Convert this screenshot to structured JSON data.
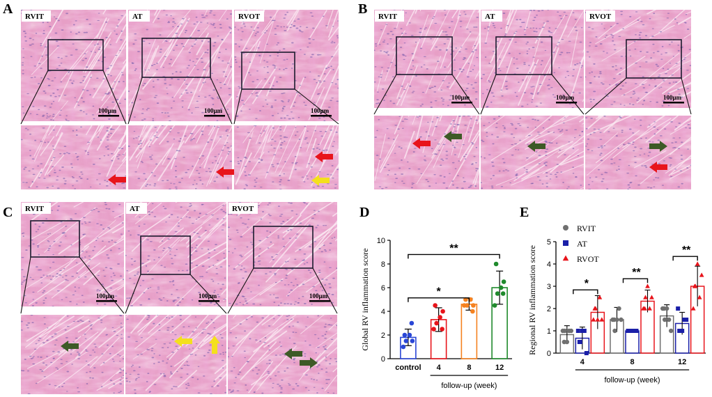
{
  "panel_letters": [
    "A",
    "B",
    "C",
    "D",
    "E"
  ],
  "histology": {
    "region_labels": [
      "RVIT",
      "AT",
      "RVOT"
    ],
    "scale_bar_label": "100μm",
    "tissue_colors": {
      "base": "#e79fc6",
      "light": "#f3c6dc",
      "fiber": "#d880b2",
      "nucleus": "#6b56a8",
      "gap": "#fbe9f2"
    },
    "arrow_colors": {
      "red": "#e8141b",
      "green": "#3d5a27",
      "yellow": "#f4e01c"
    }
  },
  "chart_data": [
    {
      "type": "bar",
      "panel": "D",
      "title": "",
      "ylabel": "Global RV inflammation score",
      "xlabel": "follow-up (week)",
      "categories": [
        "control",
        "4",
        "8",
        "12"
      ],
      "ylim": [
        0,
        10
      ],
      "yticks": [
        0,
        2,
        4,
        6,
        8,
        10
      ],
      "colors": [
        "#2a47d6",
        "#e8141b",
        "#f58220",
        "#1f8a2c"
      ],
      "values": [
        1.8,
        3.3,
        4.6,
        6.0
      ],
      "errors": [
        0.7,
        1.0,
        0.5,
        1.4
      ],
      "points": [
        [
          1.0,
          1.5,
          2.0,
          1.5,
          2.0,
          3.0
        ],
        [
          2.5,
          3.0,
          3.5,
          4.0,
          4.5,
          2.5
        ],
        [
          4.5,
          4.5,
          5.0,
          4.5,
          5.0,
          4.0
        ],
        [
          4.5,
          5.5,
          6.0,
          6.5,
          8.0,
          5.5
        ]
      ],
      "significance": [
        {
          "from": "control",
          "to": "8",
          "label": "*"
        },
        {
          "from": "control",
          "to": "12",
          "label": "**"
        }
      ],
      "grid": false
    },
    {
      "type": "bar",
      "panel": "E",
      "title": "",
      "ylabel": "Regional RV inflammation score",
      "xlabel": "follow-up (week)",
      "categories": [
        "4",
        "8",
        "12"
      ],
      "ylim": [
        0,
        5
      ],
      "yticks": [
        0,
        1,
        2,
        3,
        4,
        5
      ],
      "series": [
        {
          "name": "RVIT",
          "color": "#707070",
          "values": [
            0.83,
            1.5,
            1.67
          ],
          "errors": [
            0.4,
            0.55,
            0.5
          ],
          "points": [
            [
              1,
              1,
              0.5,
              1,
              1,
              0.5
            ],
            [
              1.5,
              1,
              1.5,
              2,
              1.5,
              1.5
            ],
            [
              2,
              1.5,
              2,
              1.5,
              1,
              2
            ]
          ]
        },
        {
          "name": "AT",
          "color": "#1a1fa8",
          "values": [
            0.67,
            1.0,
            1.33
          ],
          "errors": [
            0.5,
            0.05,
            0.5
          ],
          "points": [
            [
              1,
              0.5,
              1,
              1,
              0,
              0.5
            ],
            [
              1,
              1,
              1,
              1,
              1,
              1
            ],
            [
              2,
              1,
              1,
              1.5,
              1.5,
              1
            ]
          ]
        },
        {
          "name": "RVOT",
          "color": "#e8141b",
          "values": [
            1.83,
            2.33,
            3.0
          ],
          "errors": [
            0.75,
            0.5,
            0.9
          ],
          "points": [
            [
              1.5,
              2,
              1.5,
              2.5,
              1.5,
              2
            ],
            [
              2,
              2.5,
              3,
              2,
              2.5,
              2
            ],
            [
              2,
              3,
              4,
              2.5,
              3.5,
              3
            ]
          ]
        }
      ],
      "significance": [
        {
          "category": "4",
          "label": "*"
        },
        {
          "category": "8",
          "label": "**"
        },
        {
          "category": "12",
          "label": "**"
        }
      ],
      "legend": "top-left",
      "grid": false
    }
  ]
}
